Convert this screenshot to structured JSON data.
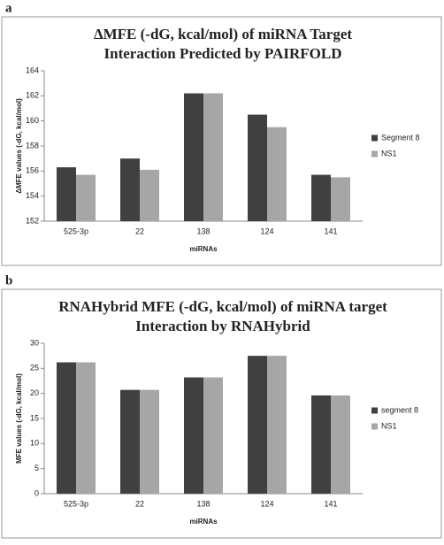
{
  "chart_data": [
    {
      "type": "bar",
      "panel_label": "a",
      "title": [
        "ΔMFE (-dG, kcal/mol) of miRNA Target",
        "Interaction Predicted by PAIRFOLD"
      ],
      "x_label": "miRNAs",
      "y_label": "ΔMFE values (-dG, kcal/mol)",
      "categories": [
        "525-3p",
        "22",
        "138",
        "124",
        "141"
      ],
      "series": [
        {
          "name": "Segment 8",
          "color": "#404040",
          "values": [
            156.3,
            157.0,
            162.2,
            160.5,
            155.7
          ]
        },
        {
          "name": "NS1",
          "color": "#a6a6a6",
          "values": [
            155.7,
            156.1,
            162.2,
            159.5,
            155.5
          ]
        }
      ],
      "ylim": [
        152,
        164
      ],
      "yticks": [
        152,
        154,
        156,
        158,
        160,
        162,
        164
      ],
      "grid": false,
      "legend": "right"
    },
    {
      "type": "bar",
      "panel_label": "b",
      "title": [
        "RNAHybrid MFE (-dG, kcal/mol) of miRNA target",
        "Interaction by RNAHybrid"
      ],
      "x_label": "miRNAs",
      "y_label": "MFE values (-dG, kcal/mol)",
      "categories": [
        "525-3p",
        "22",
        "138",
        "124",
        "141"
      ],
      "series": [
        {
          "name": "segment 8",
          "color": "#404040",
          "values": [
            26.2,
            20.7,
            23.2,
            27.5,
            19.6
          ]
        },
        {
          "name": "NS1",
          "color": "#a6a6a6",
          "values": [
            26.2,
            20.7,
            23.2,
            27.5,
            19.6
          ]
        }
      ],
      "ylim": [
        0,
        30
      ],
      "yticks": [
        0,
        5,
        10,
        15,
        20,
        25,
        30
      ],
      "grid": false,
      "legend": "right"
    }
  ]
}
